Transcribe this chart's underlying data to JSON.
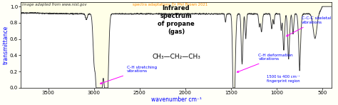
{
  "title": "Infrared\nspectrum\nof propane\n(gas)",
  "formula": "CH₃—CH₂—CH₃",
  "xlabel": "wavenumber cm⁻¹",
  "ylabel": "transmittance",
  "xmin": 3800,
  "xmax": 400,
  "ymin": 0.0,
  "ymax": 1.05,
  "background_color": "#fffff8",
  "spectrum_color": "#333333",
  "fill_top_color": "#fffff0",
  "fill_bot_color": "#ffffff",
  "credit1": "Image adapted from www.nist.gov",
  "credit2": "spectra adaptations Dr Phil Brown 2021",
  "ytick_labels": [
    "0.0",
    "0.2",
    "0.4",
    "0.6",
    "0.8",
    "1.0"
  ],
  "yticks": [
    0.0,
    0.2,
    0.4,
    0.6,
    0.8,
    1.0
  ],
  "xticks": [
    3500,
    3000,
    2500,
    2000,
    1500,
    1000,
    500
  ]
}
